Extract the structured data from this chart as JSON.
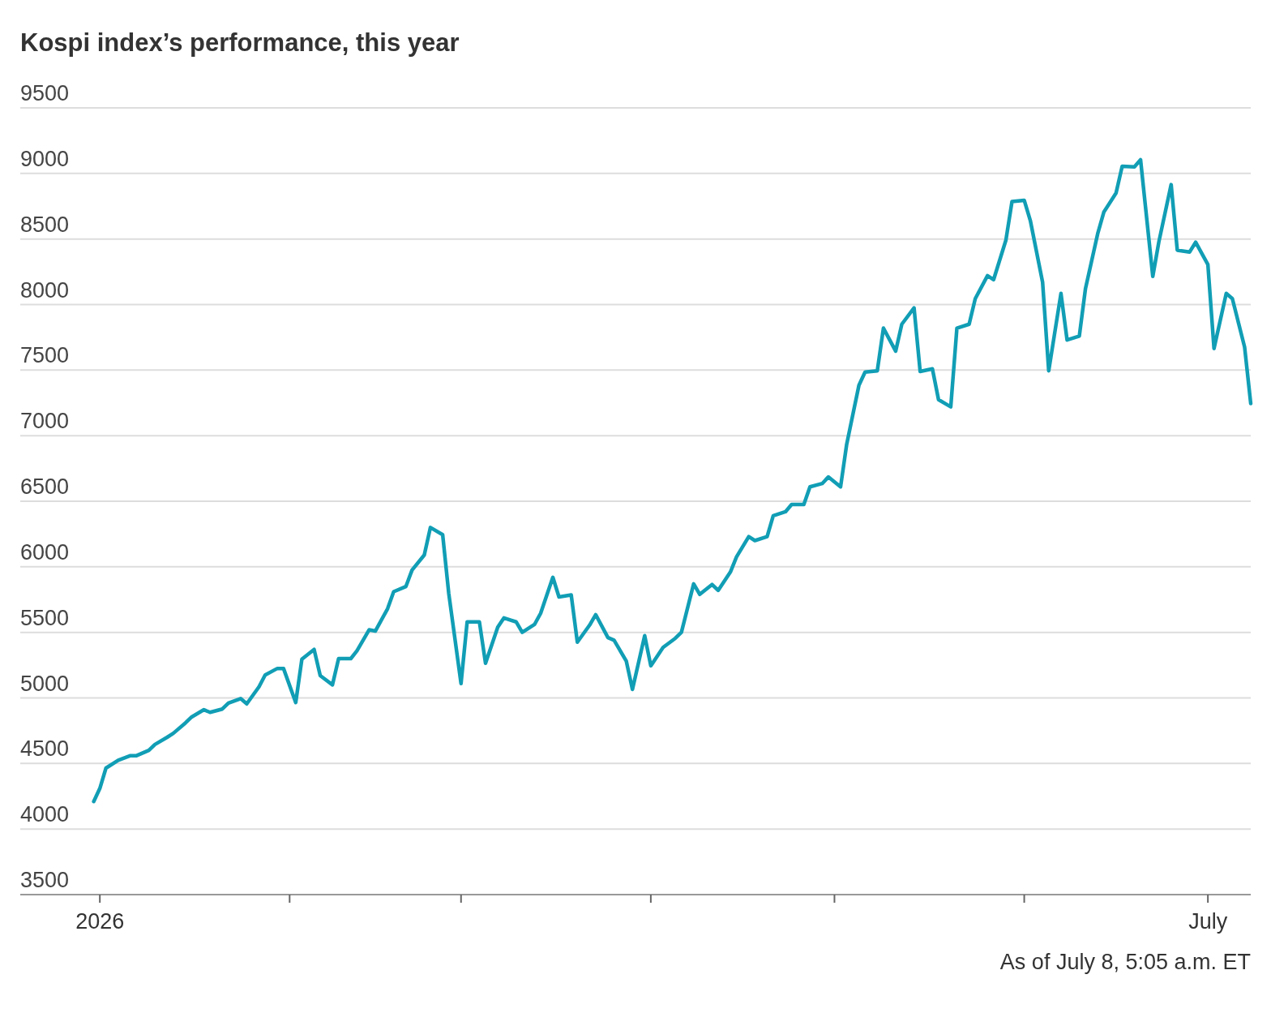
{
  "chart_data": {
    "type": "line",
    "title": "Kospi index’s performance, this year",
    "annotations": [
      "As of July 8, 5:05 a.m. ET"
    ],
    "x": [
      "2025-12-31",
      "2026-01-01",
      "2026-01-02",
      "2026-01-04",
      "2026-01-06",
      "2026-01-07",
      "2026-01-09",
      "2026-01-10",
      "2026-01-12",
      "2026-01-13",
      "2026-01-15",
      "2026-01-16",
      "2026-01-18",
      "2026-01-19",
      "2026-01-21",
      "2026-01-22",
      "2026-01-24",
      "2026-01-25",
      "2026-01-27",
      "2026-01-28",
      "2026-01-30",
      "2026-01-31",
      "2026-02-02",
      "2026-02-03",
      "2026-02-05",
      "2026-02-06",
      "2026-02-08",
      "2026-02-09",
      "2026-02-11",
      "2026-02-12",
      "2026-02-14",
      "2026-02-15",
      "2026-02-17",
      "2026-02-18",
      "2026-02-20",
      "2026-02-21",
      "2026-02-23",
      "2026-02-24",
      "2026-02-26",
      "2026-02-27",
      "2026-03-01",
      "2026-03-02",
      "2026-03-04",
      "2026-03-05",
      "2026-03-07",
      "2026-03-08",
      "2026-03-10",
      "2026-03-11",
      "2026-03-13",
      "2026-03-14",
      "2026-03-16",
      "2026-03-17",
      "2026-03-19",
      "2026-03-20",
      "2026-03-22",
      "2026-03-23",
      "2026-03-25",
      "2026-03-26",
      "2026-03-28",
      "2026-03-29",
      "2026-03-31",
      "2026-04-01",
      "2026-04-03",
      "2026-04-05",
      "2026-04-06",
      "2026-04-08",
      "2026-04-09",
      "2026-04-11",
      "2026-04-12",
      "2026-04-14",
      "2026-04-15",
      "2026-04-17",
      "2026-04-18",
      "2026-04-20",
      "2026-04-21",
      "2026-04-23",
      "2026-04-24",
      "2026-04-26",
      "2026-04-27",
      "2026-04-29",
      "2026-04-30",
      "2026-05-02",
      "2026-05-03",
      "2026-05-05",
      "2026-05-06",
      "2026-05-08",
      "2026-05-09",
      "2026-05-11",
      "2026-05-12",
      "2026-05-14",
      "2026-05-15",
      "2026-05-17",
      "2026-05-18",
      "2026-05-20",
      "2026-05-21",
      "2026-05-23",
      "2026-05-24",
      "2026-05-26",
      "2026-05-27",
      "2026-05-29",
      "2026-05-30",
      "2026-06-01",
      "2026-06-02",
      "2026-06-04",
      "2026-06-05",
      "2026-06-07",
      "2026-06-08",
      "2026-06-10",
      "2026-06-11",
      "2026-06-13",
      "2026-06-14",
      "2026-06-16",
      "2026-06-17",
      "2026-06-19",
      "2026-06-20",
      "2026-06-22",
      "2026-06-23",
      "2026-06-25",
      "2026-06-26",
      "2026-06-28",
      "2026-06-29",
      "2026-07-01",
      "2026-07-02",
      "2026-07-04",
      "2026-07-05",
      "2026-07-07",
      "2026-07-08"
    ],
    "series": [
      {
        "color": "#119eb5",
        "values": [
          4210,
          4310,
          4465,
          4525,
          4560,
          4560,
          4600,
          4645,
          4700,
          4730,
          4810,
          4855,
          4910,
          4890,
          4915,
          4960,
          4995,
          4955,
          5085,
          5175,
          5225,
          5225,
          4965,
          5295,
          5370,
          5170,
          5100,
          5300,
          5300,
          5360,
          5520,
          5510,
          5680,
          5810,
          5850,
          5975,
          6090,
          6300,
          6245,
          5795,
          5110,
          5580,
          5580,
          5265,
          5540,
          5610,
          5580,
          5500,
          5560,
          5645,
          5920,
          5770,
          5785,
          5425,
          5555,
          5635,
          5460,
          5440,
          5280,
          5065,
          5475,
          5245,
          5385,
          5455,
          5500,
          5870,
          5790,
          5865,
          5820,
          5960,
          6075,
          6230,
          6200,
          6230,
          6390,
          6420,
          6475,
          6475,
          6610,
          6635,
          6685,
          6610,
          6935,
          7385,
          7485,
          7495,
          7820,
          7645,
          7850,
          7975,
          7490,
          7510,
          7275,
          7220,
          7820,
          7850,
          8045,
          8220,
          8190,
          8490,
          8785,
          8795,
          8640,
          8170,
          7495,
          8085,
          7730,
          7760,
          8120,
          8540,
          8705,
          8850,
          9055,
          9050,
          9105,
          8215,
          8480,
          8915,
          8415,
          8400,
          8475,
          8305,
          7665,
          8085,
          8045,
          7675,
          7245
        ]
      }
    ],
    "xlim": [
      "2025-12-19",
      "2026-07-08"
    ],
    "xticks": [
      {
        "value": "2026-01-01",
        "label": "2026"
      },
      {
        "value": "2026-02-01",
        "label": null
      },
      {
        "value": "2026-03-01",
        "label": null
      },
      {
        "value": "2026-04-01",
        "label": null
      },
      {
        "value": "2026-05-01",
        "label": null
      },
      {
        "value": "2026-06-01",
        "label": null
      },
      {
        "value": "2026-07-01",
        "label": "July"
      }
    ],
    "ylim": [
      3500,
      9500
    ],
    "yticks": [
      3500,
      4000,
      4500,
      5000,
      5500,
      6000,
      6500,
      7000,
      7500,
      8000,
      8500,
      9000,
      9500
    ],
    "grid": "y",
    "line_style": "solid",
    "marker": "none"
  }
}
